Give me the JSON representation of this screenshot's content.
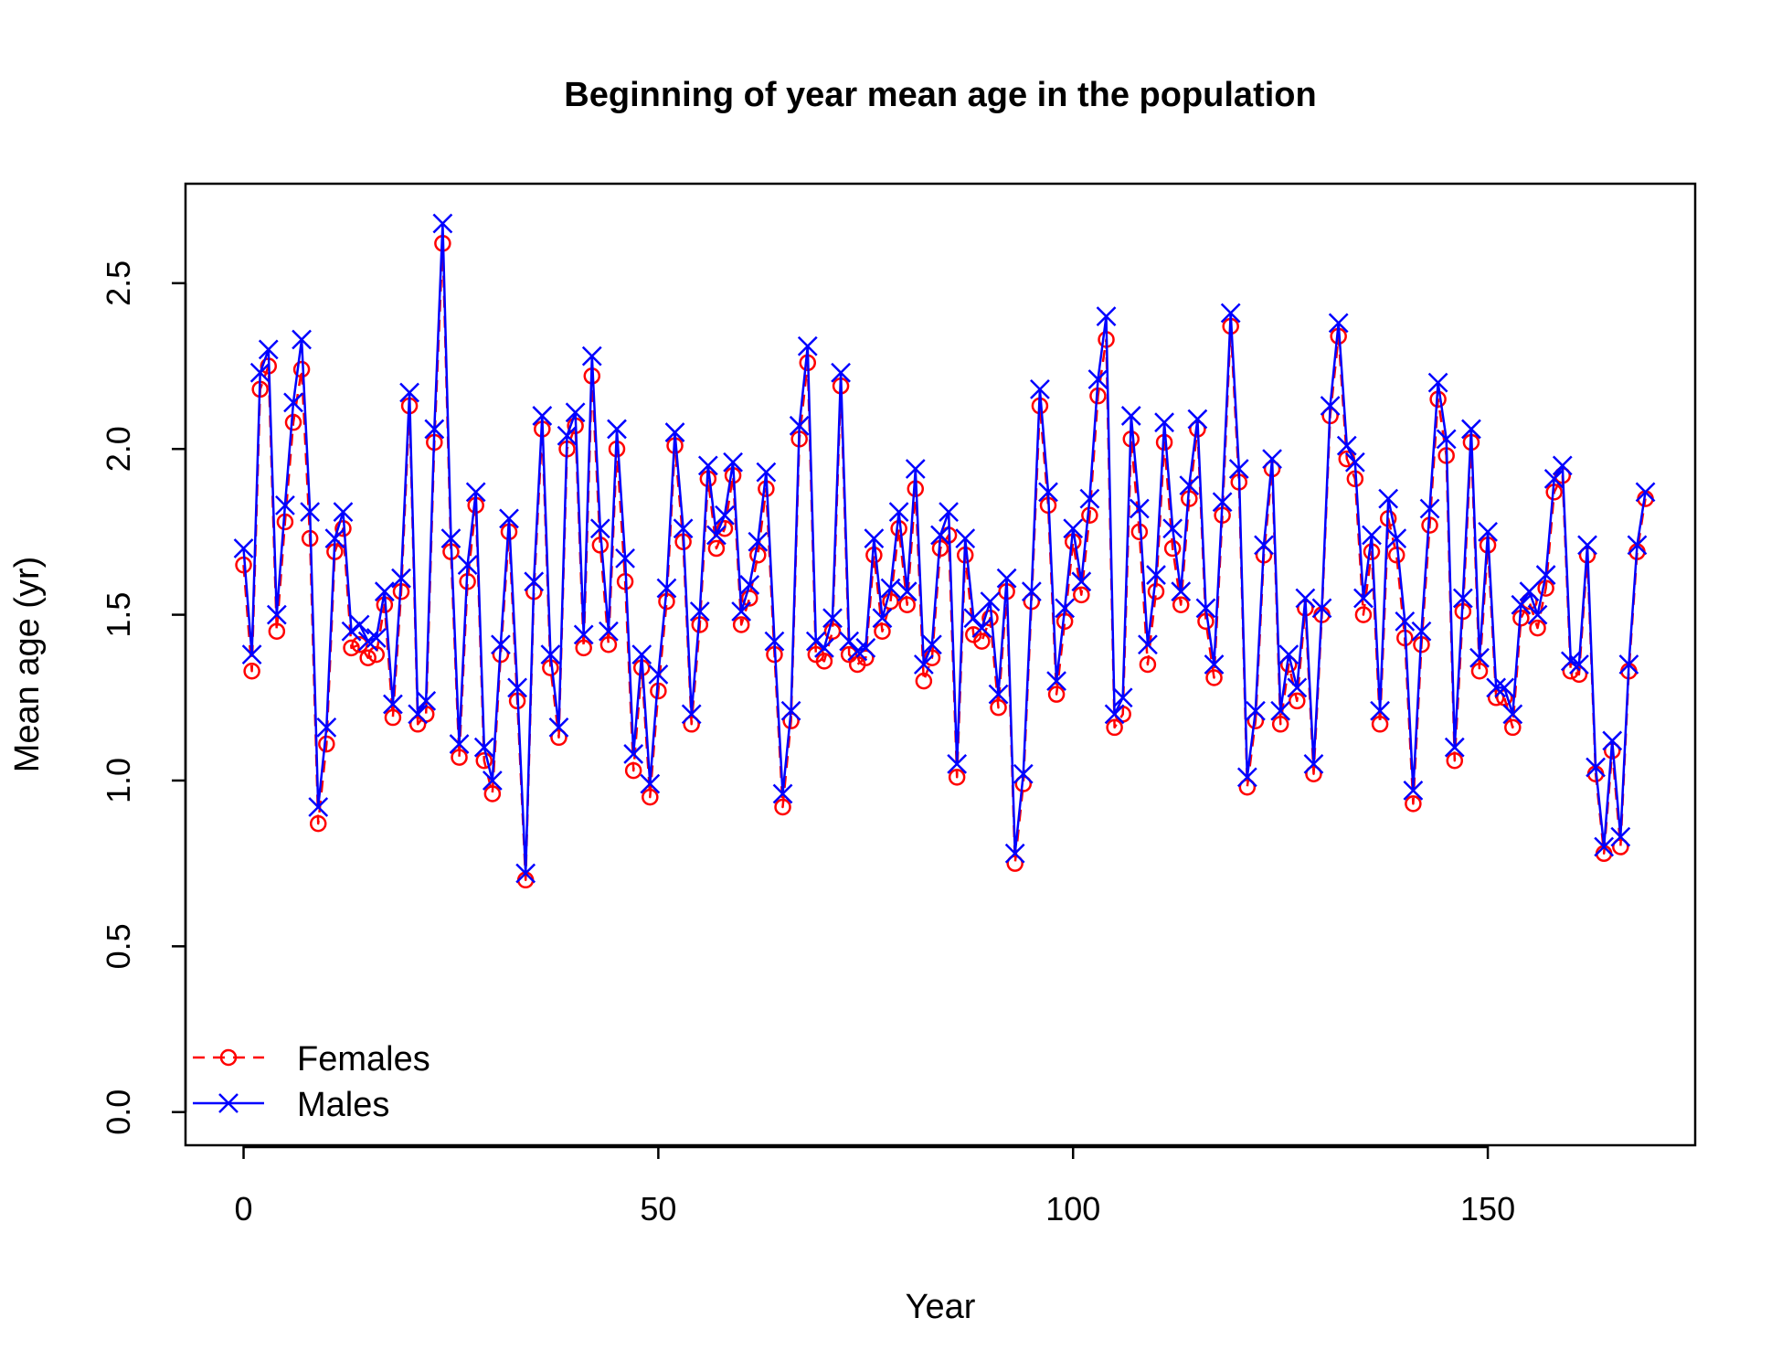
{
  "chart_data": {
    "type": "line",
    "title": "Beginning of year mean age in the population",
    "xlabel": "Year",
    "ylabel": "Mean age (yr)",
    "xlim": [
      -7,
      175
    ],
    "ylim": [
      -0.1,
      2.8
    ],
    "xticks": [
      0,
      50,
      100,
      150
    ],
    "yticks": [
      0.0,
      0.5,
      1.0,
      1.5,
      2.0,
      2.5
    ],
    "ytick_labels": [
      "0.0",
      "0.5",
      "1.0",
      "1.5",
      "2.0",
      "2.5"
    ],
    "grid": false,
    "legend_position": "bottom-left",
    "x": [
      0,
      1,
      2,
      3,
      4,
      5,
      6,
      7,
      8,
      9,
      10,
      11,
      12,
      13,
      14,
      15,
      16,
      17,
      18,
      19,
      20,
      21,
      22,
      23,
      24,
      25,
      26,
      27,
      28,
      29,
      30,
      31,
      32,
      33,
      34,
      35,
      36,
      37,
      38,
      39,
      40,
      41,
      42,
      43,
      44,
      45,
      46,
      47,
      48,
      49,
      50,
      51,
      52,
      53,
      54,
      55,
      56,
      57,
      58,
      59,
      60,
      61,
      62,
      63,
      64,
      65,
      66,
      67,
      68,
      69,
      70,
      71,
      72,
      73,
      74,
      75,
      76,
      77,
      78,
      79,
      80,
      81,
      82,
      83,
      84,
      85,
      86,
      87,
      88,
      89,
      90,
      91,
      92,
      93,
      94,
      95,
      96,
      97,
      98,
      99,
      100,
      101,
      102,
      103,
      104,
      105,
      106,
      107,
      108,
      109,
      110,
      111,
      112,
      113,
      114,
      115,
      116,
      117,
      118,
      119,
      120,
      121,
      122,
      123,
      124,
      125,
      126,
      127,
      128,
      129,
      130,
      131,
      132,
      133,
      134,
      135,
      136,
      137,
      138,
      139,
      140,
      141,
      142,
      143,
      144,
      145,
      146,
      147,
      148,
      149,
      150,
      151,
      152,
      153,
      154,
      155,
      156,
      157,
      158,
      159,
      160,
      161,
      162,
      163,
      164,
      165,
      166,
      167,
      168,
      169
    ],
    "series": [
      {
        "name": "Females",
        "color": "#ff0000",
        "line_style": "dashed",
        "marker": "circle",
        "values": [
          1.65,
          1.33,
          2.18,
          2.25,
          1.45,
          1.78,
          2.08,
          2.24,
          1.73,
          0.87,
          1.11,
          1.69,
          1.76,
          1.4,
          1.41,
          1.37,
          1.38,
          1.53,
          1.19,
          1.57,
          2.13,
          1.17,
          1.2,
          2.02,
          2.62,
          1.69,
          1.07,
          1.6,
          1.83,
          1.06,
          0.96,
          1.38,
          1.75,
          1.24,
          0.7,
          1.57,
          2.06,
          1.34,
          1.13,
          2.0,
          2.07,
          1.4,
          2.22,
          1.71,
          1.41,
          2.0,
          1.6,
          1.03,
          1.34,
          0.95,
          1.27,
          1.54,
          2.01,
          1.72,
          1.17,
          1.47,
          1.91,
          1.7,
          1.76,
          1.92,
          1.47,
          1.55,
          1.68,
          1.88,
          1.38,
          0.92,
          1.18,
          2.03,
          2.26,
          1.38,
          1.36,
          1.45,
          2.19,
          1.38,
          1.35,
          1.37,
          1.68,
          1.45,
          1.54,
          1.76,
          1.53,
          1.88,
          1.3,
          1.37,
          1.7,
          1.74,
          1.01,
          1.68,
          1.44,
          1.42,
          1.49,
          1.22,
          1.57,
          0.75,
          0.99,
          1.54,
          2.13,
          1.83,
          1.26,
          1.48,
          1.72,
          1.56,
          1.8,
          2.16,
          2.33,
          1.16,
          1.2,
          2.03,
          1.75,
          1.35,
          1.57,
          2.02,
          1.7,
          1.53,
          1.85,
          2.06,
          1.48,
          1.31,
          1.8,
          2.37,
          1.9,
          0.98,
          1.18,
          1.68,
          1.94,
          1.17,
          1.35,
          1.24,
          1.52,
          1.02,
          1.5,
          2.1,
          2.34,
          1.97,
          1.91,
          1.5,
          1.69,
          1.17,
          1.79,
          1.68,
          1.43,
          0.93,
          1.41,
          1.77,
          2.15,
          1.98,
          1.06,
          1.51,
          2.02,
          1.33,
          1.71,
          1.25,
          1.25,
          1.16,
          1.49,
          1.54,
          1.46,
          1.58,
          1.87,
          1.92,
          1.33,
          1.32,
          1.68,
          1.02,
          0.78,
          1.09,
          0.8,
          1.33,
          1.69,
          1.85
        ]
      },
      {
        "name": "Males",
        "color": "#0000ff",
        "line_style": "solid",
        "marker": "x",
        "values": [
          1.7,
          1.38,
          2.23,
          2.3,
          1.5,
          1.83,
          2.14,
          2.33,
          1.81,
          0.92,
          1.16,
          1.73,
          1.81,
          1.45,
          1.47,
          1.42,
          1.43,
          1.57,
          1.23,
          1.61,
          2.17,
          1.2,
          1.24,
          2.06,
          2.68,
          1.73,
          1.11,
          1.65,
          1.87,
          1.1,
          1.0,
          1.41,
          1.79,
          1.28,
          0.72,
          1.6,
          2.1,
          1.38,
          1.16,
          2.04,
          2.11,
          1.44,
          2.28,
          1.76,
          1.45,
          2.06,
          1.67,
          1.08,
          1.38,
          0.99,
          1.32,
          1.58,
          2.05,
          1.76,
          1.2,
          1.51,
          1.95,
          1.74,
          1.8,
          1.96,
          1.51,
          1.59,
          1.72,
          1.93,
          1.42,
          0.96,
          1.21,
          2.07,
          2.31,
          1.42,
          1.4,
          1.49,
          2.23,
          1.42,
          1.39,
          1.4,
          1.73,
          1.49,
          1.58,
          1.81,
          1.57,
          1.94,
          1.35,
          1.41,
          1.74,
          1.81,
          1.05,
          1.73,
          1.49,
          1.46,
          1.54,
          1.26,
          1.61,
          0.78,
          1.02,
          1.57,
          2.18,
          1.87,
          1.3,
          1.52,
          1.76,
          1.6,
          1.85,
          2.21,
          2.4,
          1.2,
          1.25,
          2.1,
          1.82,
          1.41,
          1.62,
          2.08,
          1.76,
          1.57,
          1.89,
          2.09,
          1.52,
          1.35,
          1.84,
          2.41,
          1.94,
          1.01,
          1.21,
          1.71,
          1.97,
          1.21,
          1.38,
          1.28,
          1.55,
          1.05,
          1.52,
          2.13,
          2.38,
          2.01,
          1.96,
          1.55,
          1.74,
          1.21,
          1.85,
          1.73,
          1.48,
          0.97,
          1.45,
          1.82,
          2.2,
          2.03,
          1.1,
          1.55,
          2.06,
          1.37,
          1.75,
          1.28,
          1.28,
          1.2,
          1.53,
          1.57,
          1.5,
          1.62,
          1.91,
          1.95,
          1.36,
          1.35,
          1.71,
          1.04,
          0.8,
          1.12,
          0.83,
          1.35,
          1.71,
          1.87
        ]
      }
    ]
  }
}
